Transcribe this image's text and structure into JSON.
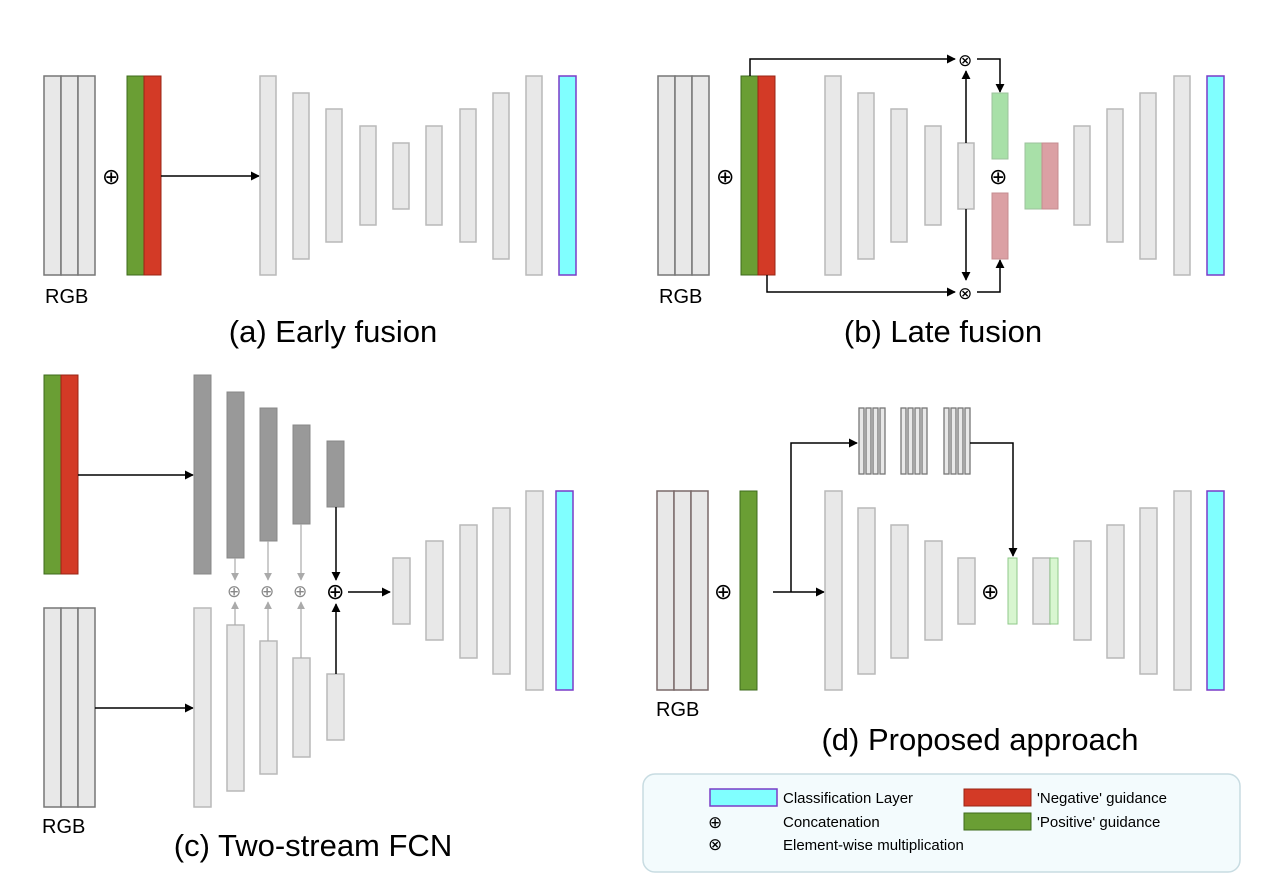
{
  "captions": {
    "a": "(a) Early fusion",
    "b": "(b) Late fusion",
    "c": "(c) Two-stream FCN",
    "d": "(d) Proposed approach"
  },
  "labels": {
    "rgb": "RGB"
  },
  "symbols": {
    "concat": "⊕",
    "multiply": "⊗"
  },
  "legend": {
    "classification_layer": "Classification Layer",
    "negative_guidance": "'Negative' guidance",
    "concatenation": "Concatenation",
    "positive_guidance": "'Positive' guidance",
    "element_wise_multiplication": "Element-wise multiplication"
  },
  "colors": {
    "layer_fill": "#e8e8e8",
    "layer_stroke": "#b9b9b9",
    "dark_layer": "#999999",
    "positive": "#6a9e34",
    "negative": "#d33a26",
    "classification": "#80ffff",
    "classification_stroke": "#7a3cc8",
    "legend_bg": "#f3fbfd",
    "legend_stroke": "#c8dce2"
  }
}
